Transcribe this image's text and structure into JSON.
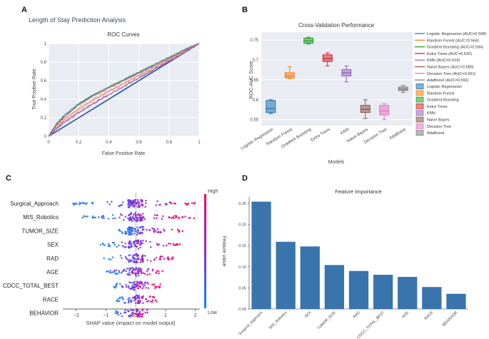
{
  "panel_labels": [
    "A",
    "B",
    "C",
    "D"
  ],
  "chart_data": [
    {
      "type": "line",
      "panel": "A",
      "suptitle": "Length of Stay Prediction Analysis",
      "title": "ROC Curves",
      "xlabel": "False Positive Rate",
      "ylabel": "True Positive Rate",
      "xlim": [
        0,
        1
      ],
      "ylim": [
        0,
        1
      ],
      "xticks": [
        "0",
        "0.2",
        "0.4",
        "0.6",
        "0.8",
        "1"
      ],
      "yticks": [
        "0",
        "0.2",
        "0.4",
        "0.6",
        "0.8",
        "1"
      ],
      "grid": true,
      "series": [
        {
          "name": "Logistic Regression",
          "auc": 0.598,
          "color": "#1f77b4",
          "points": [
            [
              0,
              0
            ],
            [
              0.05,
              0.13
            ],
            [
              0.1,
              0.22
            ],
            [
              0.2,
              0.35
            ],
            [
              0.3,
              0.45
            ],
            [
              0.4,
              0.53
            ],
            [
              0.5,
              0.61
            ],
            [
              0.6,
              0.69
            ],
            [
              0.7,
              0.77
            ],
            [
              0.8,
              0.85
            ],
            [
              0.9,
              0.93
            ],
            [
              1,
              1
            ]
          ]
        },
        {
          "name": "Random Forest",
          "auc": 0.564,
          "color": "#ff7f0e",
          "points": [
            [
              0,
              0
            ],
            [
              0.05,
              0.1
            ],
            [
              0.1,
              0.18
            ],
            [
              0.2,
              0.3
            ],
            [
              0.3,
              0.4
            ],
            [
              0.4,
              0.49
            ],
            [
              0.5,
              0.57
            ],
            [
              0.6,
              0.66
            ],
            [
              0.7,
              0.74
            ],
            [
              0.8,
              0.83
            ],
            [
              0.9,
              0.91
            ],
            [
              1,
              1
            ]
          ]
        },
        {
          "name": "Gradient Boosting",
          "auc": 0.594,
          "color": "#2ca02c",
          "points": [
            [
              0,
              0
            ],
            [
              0.05,
              0.12
            ],
            [
              0.1,
              0.21
            ],
            [
              0.2,
              0.35
            ],
            [
              0.3,
              0.45
            ],
            [
              0.4,
              0.53
            ],
            [
              0.5,
              0.61
            ],
            [
              0.6,
              0.69
            ],
            [
              0.7,
              0.77
            ],
            [
              0.8,
              0.85
            ],
            [
              0.9,
              0.93
            ],
            [
              1,
              1
            ]
          ]
        },
        {
          "name": "Extra Trees",
          "auc": 0.52,
          "color": "#d62728",
          "points": [
            [
              0,
              0
            ],
            [
              0.05,
              0.08
            ],
            [
              0.1,
              0.15
            ],
            [
              0.2,
              0.26
            ],
            [
              0.3,
              0.36
            ],
            [
              0.4,
              0.45
            ],
            [
              0.5,
              0.54
            ],
            [
              0.6,
              0.63
            ],
            [
              0.7,
              0.72
            ],
            [
              0.8,
              0.81
            ],
            [
              0.9,
              0.9
            ],
            [
              1,
              1
            ]
          ]
        },
        {
          "name": "KNN",
          "auc": 0.519,
          "color": "#9467bd",
          "points": [
            [
              0,
              0
            ],
            [
              0.05,
              0.07
            ],
            [
              0.1,
              0.14
            ],
            [
              0.2,
              0.25
            ],
            [
              0.3,
              0.35
            ],
            [
              0.4,
              0.45
            ],
            [
              0.5,
              0.54
            ],
            [
              0.6,
              0.63
            ],
            [
              0.7,
              0.72
            ],
            [
              0.8,
              0.81
            ],
            [
              0.9,
              0.9
            ],
            [
              1,
              1
            ]
          ]
        },
        {
          "name": "Naive Bayes",
          "auc": 0.589,
          "color": "#8c564b",
          "points": [
            [
              0,
              0
            ],
            [
              0.05,
              0.12
            ],
            [
              0.1,
              0.2
            ],
            [
              0.2,
              0.34
            ],
            [
              0.3,
              0.44
            ],
            [
              0.4,
              0.52
            ],
            [
              0.5,
              0.6
            ],
            [
              0.6,
              0.68
            ],
            [
              0.7,
              0.76
            ],
            [
              0.8,
              0.84
            ],
            [
              0.9,
              0.92
            ],
            [
              1,
              1
            ]
          ]
        },
        {
          "name": "Decision Tree",
          "auc": 0.561,
          "color": "#e377c2",
          "points": [
            [
              0,
              0
            ],
            [
              0.05,
              0.09
            ],
            [
              0.1,
              0.17
            ],
            [
              0.2,
              0.29
            ],
            [
              0.3,
              0.39
            ],
            [
              0.4,
              0.48
            ],
            [
              0.5,
              0.57
            ],
            [
              0.6,
              0.65
            ],
            [
              0.7,
              0.74
            ],
            [
              0.8,
              0.82
            ],
            [
              0.9,
              0.91
            ],
            [
              1,
              1
            ]
          ]
        },
        {
          "name": "AdaBoost",
          "auc": 0.592,
          "color": "#7f7f7f",
          "points": [
            [
              0,
              0
            ],
            [
              0.05,
              0.12
            ],
            [
              0.1,
              0.21
            ],
            [
              0.2,
              0.34
            ],
            [
              0.3,
              0.44
            ],
            [
              0.4,
              0.53
            ],
            [
              0.5,
              0.61
            ],
            [
              0.6,
              0.69
            ],
            [
              0.7,
              0.77
            ],
            [
              0.8,
              0.85
            ],
            [
              0.9,
              0.93
            ],
            [
              1,
              1
            ]
          ]
        }
      ],
      "diagonal": [
        [
          0,
          0
        ],
        [
          1,
          1
        ]
      ]
    },
    {
      "type": "box",
      "panel": "B",
      "title": "Cross-Validation Performance",
      "xlabel": "Models",
      "ylabel": "ROC-AUC Score",
      "ylim": [
        0.535,
        0.77
      ],
      "yticks": [
        0.55,
        0.6,
        0.65,
        0.7,
        0.75
      ],
      "ytick_labels": [
        "0.55",
        "0.6",
        "0.65",
        "0.7",
        "0.75"
      ],
      "legend_placement": "right",
      "line_legend": [
        "Logistic Regression (AUC=0.598)",
        "Random Forest (AUC=0.564)",
        "Gradient Boosting (AUC=0.594)",
        "Extra Trees (AUC=0.520)",
        "KNN (AUC=0.519)",
        "Naive Bayes (AUC=0.589)",
        "Decision Tree (AUC=0.561)",
        "AdaBoost (AUC=0.592)"
      ],
      "boxes": [
        {
          "name": "Logistic Regression",
          "color": "#1f77b4",
          "min": 0.565,
          "q1": 0.568,
          "median": 0.578,
          "q3": 0.598,
          "max": 0.6
        },
        {
          "name": "Random Forest",
          "color": "#ff7f0e",
          "min": 0.653,
          "q1": 0.655,
          "median": 0.66,
          "q3": 0.668,
          "max": 0.683
        },
        {
          "name": "Gradient Boosting",
          "color": "#2ca02c",
          "min": 0.74,
          "q1": 0.742,
          "median": 0.748,
          "q3": 0.755,
          "max": 0.757
        },
        {
          "name": "Extra Trees",
          "color": "#d62728",
          "min": 0.685,
          "q1": 0.696,
          "median": 0.703,
          "q3": 0.713,
          "max": 0.718
        },
        {
          "name": "KNN",
          "color": "#9467bd",
          "min": 0.645,
          "q1": 0.66,
          "median": 0.668,
          "q3": 0.676,
          "max": 0.685
        },
        {
          "name": "Naive Bayes",
          "color": "#8c564b",
          "min": 0.553,
          "q1": 0.568,
          "median": 0.576,
          "q3": 0.586,
          "max": 0.6
        },
        {
          "name": "Decision Tree",
          "color": "#e377c2",
          "min": 0.55,
          "q1": 0.562,
          "median": 0.572,
          "q3": 0.586,
          "max": 0.59
        },
        {
          "name": "AdaBoost",
          "color": "#7f7f7f",
          "min": 0.618,
          "q1": 0.623,
          "median": 0.627,
          "q3": 0.632,
          "max": 0.636
        }
      ]
    },
    {
      "type": "scatter",
      "panel": "C",
      "xlabel": "SHAP value (impact on model output)",
      "xlim": [
        -2.45,
        2.15
      ],
      "xticks": [
        -2,
        -1,
        0,
        1,
        2
      ],
      "xtick_labels": [
        "−2",
        "−1",
        "0",
        "1",
        "2"
      ],
      "colorbar": {
        "label": "Feature value",
        "high": "High",
        "low": "Low",
        "high_color": "#ff0052",
        "low_color": "#008bfb"
      },
      "features": [
        {
          "name": "Surgical_Approach",
          "min": -2.1,
          "max": 2.05,
          "n": 120
        },
        {
          "name": "MIS_Robotics",
          "min": -1.8,
          "max": 2.0,
          "n": 110
        },
        {
          "name": "TUMOR_SIZE",
          "min": -0.6,
          "max": 1.6,
          "n": 90
        },
        {
          "name": "SEX",
          "min": -1.2,
          "max": 1.5,
          "n": 85
        },
        {
          "name": "RAD",
          "min": -1.1,
          "max": 1.3,
          "n": 85
        },
        {
          "name": "AGE",
          "min": -1.0,
          "max": 1.0,
          "n": 80
        },
        {
          "name": "CDCC_TOTAL_BEST",
          "min": -0.8,
          "max": 0.85,
          "n": 80
        },
        {
          "name": "RACE",
          "min": -0.7,
          "max": 0.7,
          "n": 70
        },
        {
          "name": "BEHAVIOR",
          "min": -0.7,
          "max": 0.4,
          "n": 60
        }
      ]
    },
    {
      "type": "bar",
      "panel": "D",
      "title": "Feature Importance",
      "ylim": [
        0,
        0.265
      ],
      "yticks": [
        0,
        0.05,
        0.1,
        0.15,
        0.2,
        0.25
      ],
      "ytick_labels": [
        "0.00",
        "0.05",
        "0.10",
        "0.15",
        "0.20",
        "0.25"
      ],
      "bar_color": "#3a74ad",
      "categories": [
        "Surgical_Approach",
        "MIS_Robotics",
        "SEX",
        "TUMOR_SIZE",
        "RAD",
        "CDCC_TOTAL_BEST",
        "AGE",
        "RACE",
        "BEHAVIOR"
      ],
      "values": [
        0.254,
        0.159,
        0.148,
        0.104,
        0.09,
        0.081,
        0.076,
        0.052,
        0.036
      ]
    }
  ]
}
